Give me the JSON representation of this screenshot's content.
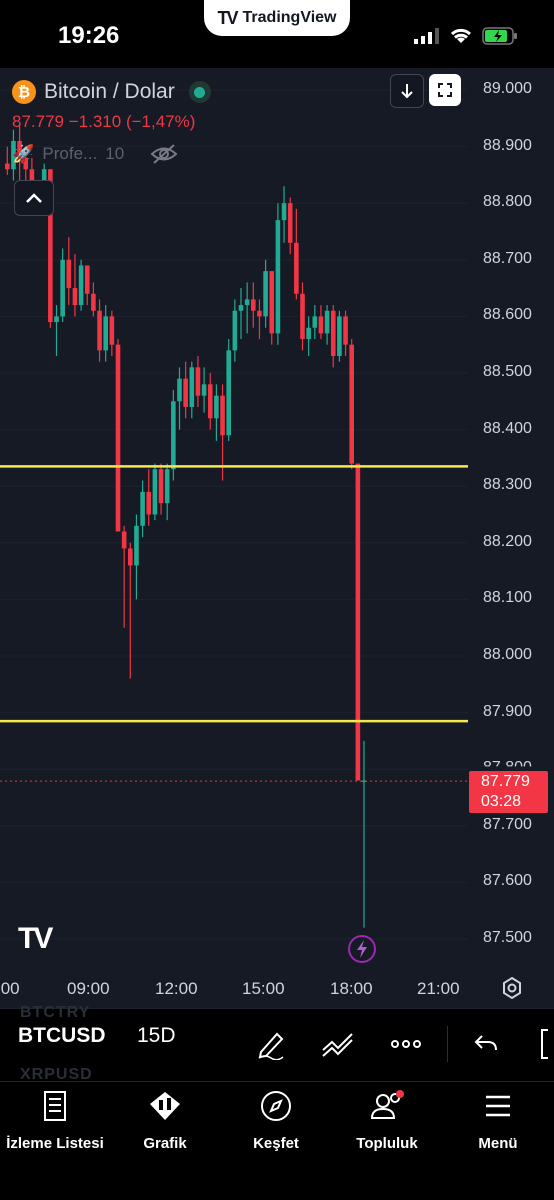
{
  "status_bar": {
    "time": "19:26",
    "app_pill": "TradingView"
  },
  "symbol": {
    "badge": "₿",
    "name": "Bitcoin / Dolar",
    "price": "87.779",
    "change": "−1.310",
    "change_pct": "(−1,47%)",
    "indicator_name": "Profe...",
    "indicator_value": "10"
  },
  "chart": {
    "price_axis": [
      "89.000",
      "88.900",
      "88.800",
      "88.700",
      "88.600",
      "88.500",
      "88.400",
      "88.300",
      "88.200",
      "88.100",
      "88.000",
      "87.900",
      "87.800",
      "87.700",
      "87.600",
      "87.500"
    ],
    "time_axis": [
      ":00",
      "09:00",
      "12:00",
      "15:00",
      "18:00",
      "21:00"
    ],
    "current_price": "87.779",
    "countdown": "03:28",
    "horizontal_levels": [
      88.335,
      87.885
    ],
    "colors": {
      "up": "#22ab94",
      "down": "#f23645",
      "level": "#f5e94b",
      "background": "#161a25"
    }
  },
  "chart_data": {
    "type": "candlestick",
    "series": [
      {
        "name": "BTCUSD",
        "interval": "15"
      }
    ]
  },
  "toolbar": {
    "ticker": "BTCUSD",
    "interval": "15D",
    "ghost_above": "BTCTRY",
    "ghost_below": "XRPUSD"
  },
  "nav": {
    "items": [
      {
        "label": "İzleme Listesi",
        "icon": "watchlist-icon"
      },
      {
        "label": "Grafik",
        "icon": "chart-icon"
      },
      {
        "label": "Keşfet",
        "icon": "compass-icon"
      },
      {
        "label": "Topluluk",
        "icon": "community-icon"
      },
      {
        "label": "Menü",
        "icon": "menu-icon"
      }
    ]
  }
}
